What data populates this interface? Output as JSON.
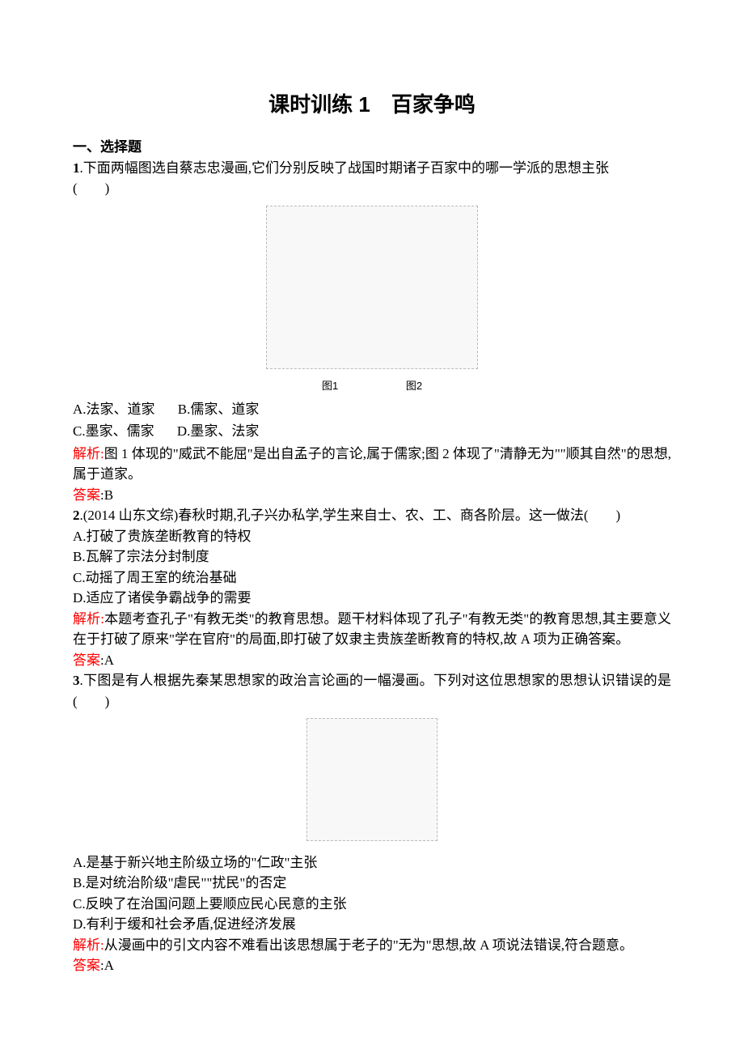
{
  "title": "课时训练 1　百家争鸣",
  "section1_header": "一、选择题",
  "q1": {
    "num": "1",
    "stem_a": ".下面两幅图选自蔡志忠漫画,它们分别反映了战国时期诸子百家中的哪一学派的思想主张",
    "stem_b": "(　　)",
    "img_label1": "图1",
    "img_label2": "图2",
    "optA": "A.法家、道家",
    "optB": "B.儒家、道家",
    "optC": "C.墨家、儒家",
    "optD": "D.墨家、法家",
    "analysis_label": "解析:",
    "analysis_text": "图 1 体现的\"威武不能屈\"是出自孟子的言论,属于儒家;图 2 体现了\"清静无为\"\"顺其自然\"的思想,属于道家。",
    "answer_label": "答案",
    "answer_text": ":B"
  },
  "q2": {
    "num": "2",
    "stem": ".(2014 山东文综)春秋时期,孔子兴办私学,学生来自士、农、工、商各阶层。这一做法(　　)",
    "optA": "A.打破了贵族垄断教育的特权",
    "optB": "B.瓦解了宗法分封制度",
    "optC": "C.动摇了周王室的统治基础",
    "optD": "D.适应了诸侯争霸战争的需要",
    "analysis_label": "解析:",
    "analysis_text": "本题考查孔子\"有教无类\"的教育思想。题干材料体现了孔子\"有教无类\"的教育思想,其主要意义在于打破了原来\"学在官府\"的局面,即打破了奴隶主贵族垄断教育的特权,故 A 项为正确答案。",
    "answer_label": "答案",
    "answer_text": ":A"
  },
  "q3": {
    "num": "3",
    "stem_a": ".下图是有人根据先秦某思想家的政治言论画的一幅漫画。下列对这位思想家的思想认识错误的是(　　)",
    "optA": "A.是基于新兴地主阶级立场的\"仁政\"主张",
    "optB": "B.是对统治阶级\"虐民\"\"扰民\"的否定",
    "optC": "C.反映了在治国问题上要顺应民心民意的主张",
    "optD": "D.有利于缓和社会矛盾,促进经济发展",
    "analysis_label": "解析:",
    "analysis_text": "从漫画中的引文内容不难看出该思想属于老子的\"无为\"思想,故 A 项说法错误,符合题意。",
    "answer_label": "答案",
    "answer_text": ":A"
  }
}
